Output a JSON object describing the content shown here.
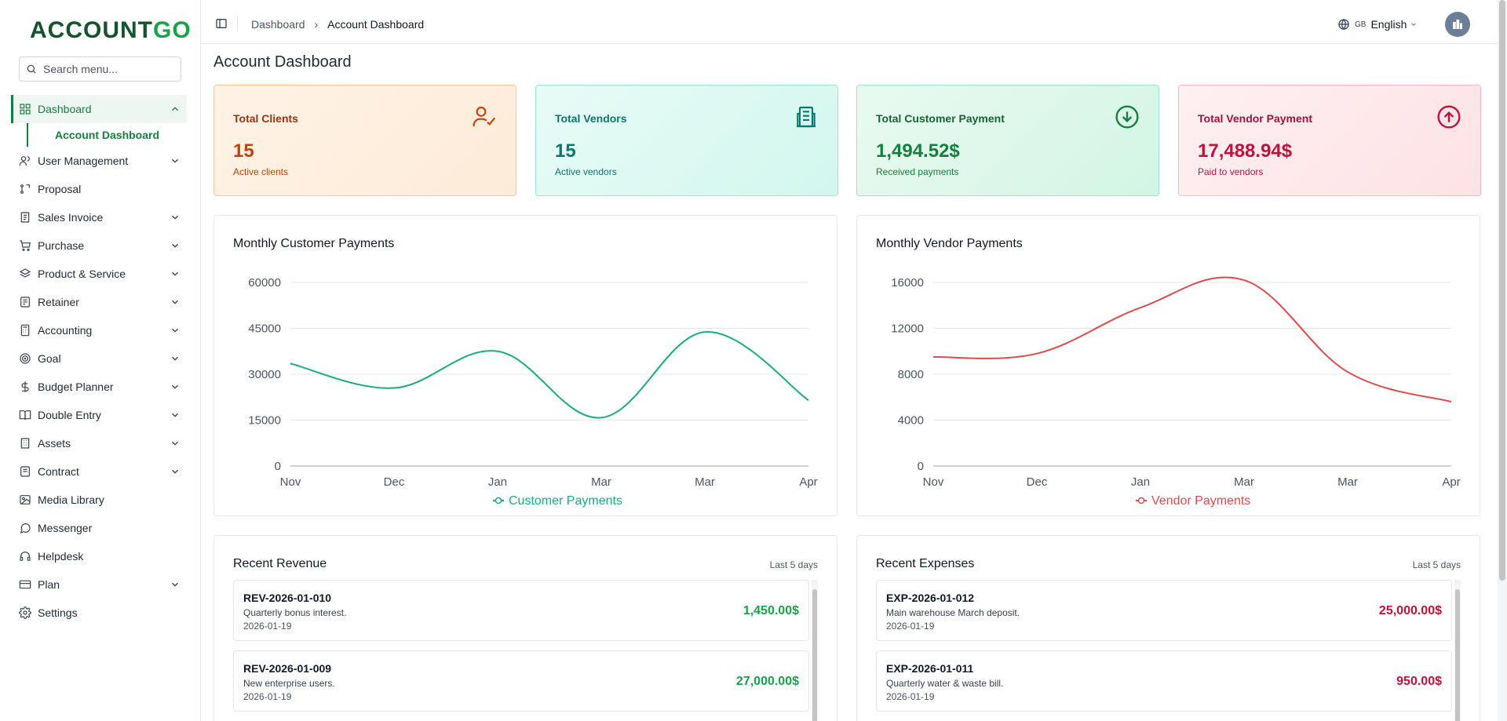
{
  "brand": {
    "logo_part1": "ACCOUNT",
    "logo_part2": "GO"
  },
  "sidebar": {
    "search_placeholder": "Search menu...",
    "items": [
      {
        "label": "Dashboard",
        "icon": "grid-icon",
        "chevron": "up",
        "active": true
      },
      {
        "label": "User Management",
        "icon": "users-icon",
        "chevron": "down"
      },
      {
        "label": "Proposal",
        "icon": "proposal-icon",
        "chevron": ""
      },
      {
        "label": "Sales Invoice",
        "icon": "invoice-icon",
        "chevron": "down"
      },
      {
        "label": "Purchase",
        "icon": "cart-icon",
        "chevron": "down"
      },
      {
        "label": "Product & Service",
        "icon": "layers-icon",
        "chevron": "down"
      },
      {
        "label": "Retainer",
        "icon": "briefcase-icon",
        "chevron": "down"
      },
      {
        "label": "Accounting",
        "icon": "calculator-icon",
        "chevron": "down"
      },
      {
        "label": "Goal",
        "icon": "target-icon",
        "chevron": "down"
      },
      {
        "label": "Budget Planner",
        "icon": "dollar-icon",
        "chevron": "down"
      },
      {
        "label": "Double Entry",
        "icon": "book-icon",
        "chevron": "down"
      },
      {
        "label": "Assets",
        "icon": "building-icon",
        "chevron": "down"
      },
      {
        "label": "Contract",
        "icon": "contract-icon",
        "chevron": "down"
      },
      {
        "label": "Media Library",
        "icon": "image-icon",
        "chevron": ""
      },
      {
        "label": "Messenger",
        "icon": "message-icon",
        "chevron": ""
      },
      {
        "label": "Helpdesk",
        "icon": "headset-icon",
        "chevron": ""
      },
      {
        "label": "Plan",
        "icon": "card-icon",
        "chevron": "down"
      },
      {
        "label": "Settings",
        "icon": "gear-icon",
        "chevron": ""
      }
    ],
    "sub_item": "Account Dashboard"
  },
  "header": {
    "breadcrumb": [
      "Dashboard",
      "Account Dashboard"
    ],
    "lang_code": "GB",
    "lang_label": "English"
  },
  "page": {
    "title": "Account Dashboard"
  },
  "stats": [
    {
      "label": "Total Clients",
      "value": "15",
      "sub": "Active clients",
      "icon": "user-check-icon",
      "color": "#c2410c"
    },
    {
      "label": "Total Vendors",
      "value": "15",
      "sub": "Active vendors",
      "icon": "building-icon",
      "color": "#0f766e"
    },
    {
      "label": "Total Customer Payment",
      "value": "1,494.52$",
      "sub": "Received payments",
      "icon": "arrow-down-circle-icon",
      "color": "#15803d"
    },
    {
      "label": "Total Vendor Payment",
      "value": "17,488.94$",
      "sub": "Paid to vendors",
      "icon": "arrow-up-circle-icon",
      "color": "#be123c"
    }
  ],
  "chart_data": [
    {
      "type": "line",
      "title": "Monthly Customer Payments",
      "categories": [
        "Nov",
        "Dec",
        "Jan",
        "Mar",
        "Mar",
        "Apr"
      ],
      "series": [
        {
          "name": "Customer Payments",
          "values": [
            33500,
            25500,
            37500,
            15800,
            43800,
            21500
          ],
          "color": "#1aab7f"
        }
      ],
      "ylim": [
        0,
        60000
      ],
      "yticks": [
        "60000",
        "45000",
        "30000",
        "15000",
        "0"
      ],
      "grid": true,
      "legend": "bottom"
    },
    {
      "type": "line",
      "title": "Monthly Vendor Payments",
      "categories": [
        "Nov",
        "Dec",
        "Jan",
        "Mar",
        "Mar",
        "Apr"
      ],
      "series": [
        {
          "name": "Vendor Payments",
          "values": [
            9500,
            9800,
            13800,
            16200,
            8200,
            5600
          ],
          "color": "#dc4c4c"
        }
      ],
      "ylim": [
        0,
        16000
      ],
      "yticks": [
        "16000",
        "12000",
        "8000",
        "4000",
        "0"
      ],
      "grid": true,
      "legend": "bottom"
    }
  ],
  "revenue": {
    "title": "Recent Revenue",
    "range": "Last 5 days",
    "items": [
      {
        "id": "REV-2026-01-010",
        "desc": "Quarterly bonus interest.",
        "date": "2026-01-19",
        "amount": "1,450.00$"
      },
      {
        "id": "REV-2026-01-009",
        "desc": "New enterprise users.",
        "date": "2026-01-19",
        "amount": "27,000.00$"
      }
    ]
  },
  "expenses": {
    "title": "Recent Expenses",
    "range": "Last 5 days",
    "items": [
      {
        "id": "EXP-2026-01-012",
        "desc": "Main warehouse March deposit.",
        "date": "2026-01-19",
        "amount": "25,000.00$"
      },
      {
        "id": "EXP-2026-01-011",
        "desc": "Quarterly water & waste bill.",
        "date": "2026-01-19",
        "amount": "950.00$"
      }
    ]
  }
}
